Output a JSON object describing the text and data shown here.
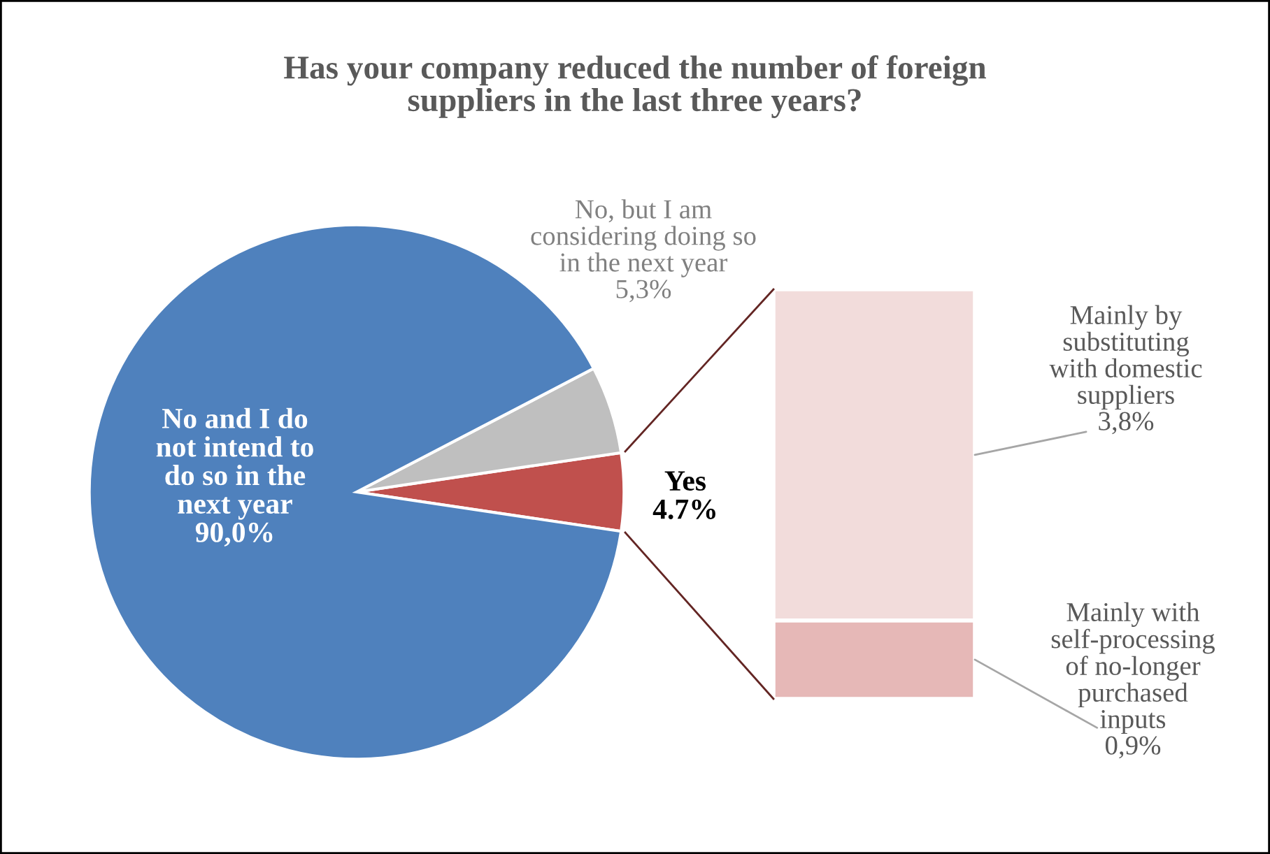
{
  "chart_data": [
    {
      "type": "pie",
      "title": "Has your company reduced the number of foreign\nsuppliers in the last three years?",
      "categories": [
        "Yes",
        "No, but I am\nconsidering doing so\nin the next year",
        "No and I do\nnot intend to\ndo so in the\nnext year"
      ],
      "values": [
        4.7,
        5.3,
        90.0
      ],
      "colors": [
        "#c0504d",
        "#bfbfbf",
        "#4f81bd"
      ],
      "value_labels": [
        "4.7%",
        "5,3%",
        "90,0%"
      ]
    },
    {
      "type": "bar",
      "stacked": true,
      "categories": [
        null
      ],
      "series": [
        {
          "name": "Mainly with\nself-processing\nof no-longer\npurchased\ninputs",
          "color": "#e6b8b7",
          "values": [
            0.9
          ],
          "value_labels": [
            "0,9%"
          ]
        },
        {
          "name": "Mainly by\nsubstituting\nwith domestic\nsuppliers",
          "color": "#f2dcdb",
          "values": [
            3.8
          ],
          "value_labels": [
            "3,8%"
          ]
        }
      ]
    }
  ]
}
